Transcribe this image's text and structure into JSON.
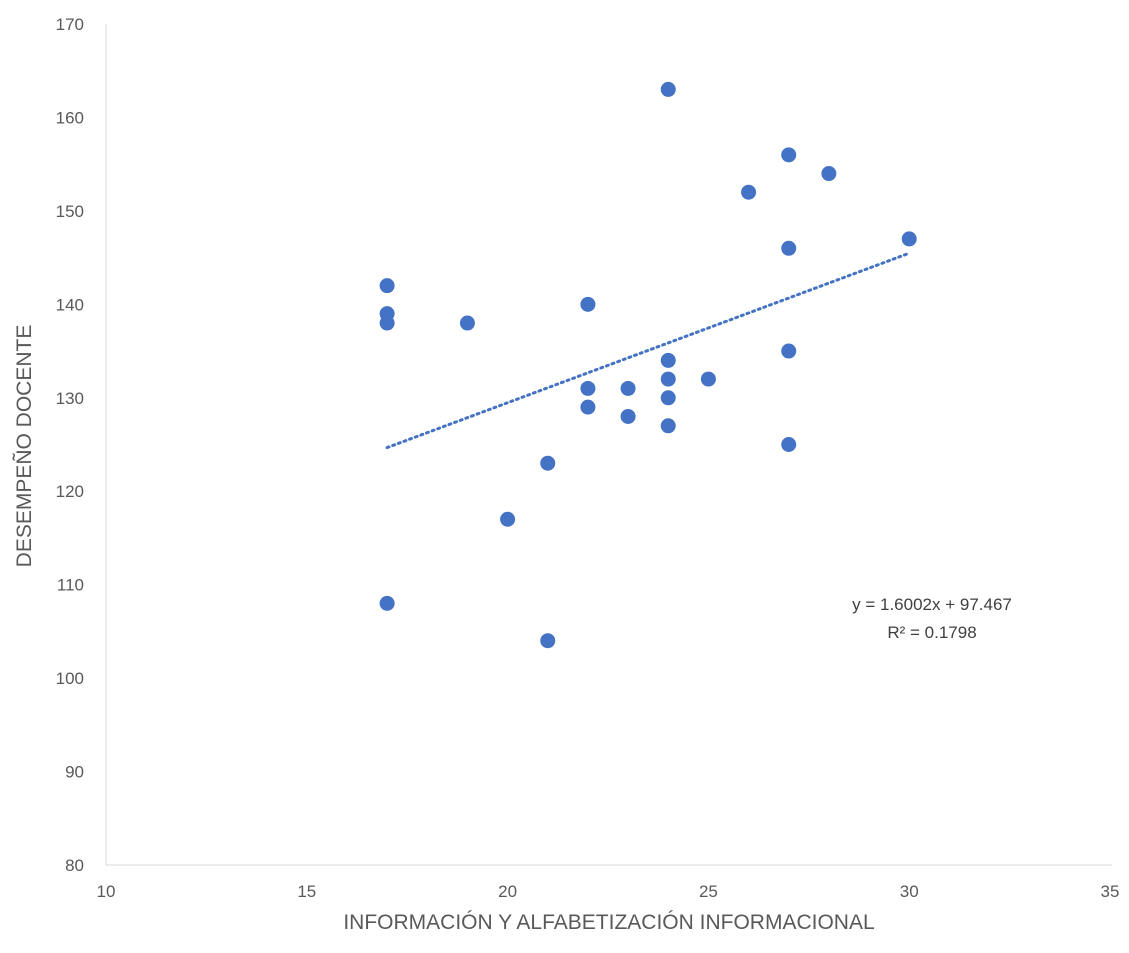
{
  "chart_data": {
    "type": "scatter",
    "title": "",
    "xlabel": "INFORMACIÓN Y ALFABETIZACIÓN INFORMACIONAL",
    "ylabel": "DESEMPEÑO DOCENTE",
    "xlim": [
      10,
      35
    ],
    "ylim": [
      80,
      170
    ],
    "xticks": [
      "10",
      "15",
      "20",
      "25",
      "30",
      "35"
    ],
    "yticks": [
      "80",
      "90",
      "100",
      "110",
      "120",
      "130",
      "140",
      "150",
      "160",
      "170"
    ],
    "grid": false,
    "legend": "none",
    "series": [
      {
        "color": "#4472C4",
        "points": [
          [
            17,
            142
          ],
          [
            17,
            139
          ],
          [
            17,
            138
          ],
          [
            17,
            108
          ],
          [
            19,
            138
          ],
          [
            20,
            117
          ],
          [
            21,
            123
          ],
          [
            21,
            104
          ],
          [
            22,
            140
          ],
          [
            22,
            131
          ],
          [
            22,
            129
          ],
          [
            23,
            131
          ],
          [
            23,
            128
          ],
          [
            24,
            163
          ],
          [
            24,
            134
          ],
          [
            24,
            132
          ],
          [
            24,
            130
          ],
          [
            24,
            127
          ],
          [
            25,
            132
          ],
          [
            26,
            152
          ],
          [
            27,
            156
          ],
          [
            27,
            146
          ],
          [
            27,
            135
          ],
          [
            27,
            125
          ],
          [
            28,
            154
          ],
          [
            30,
            147
          ]
        ]
      }
    ],
    "trendline": {
      "type": "linear",
      "style": "dotted",
      "color": "#4472C4",
      "slope": 1.6002,
      "intercept": 97.467,
      "x_range": [
        17,
        30
      ],
      "equation_label": "y = 1.6002x + 97.467",
      "r2_label": "R² = 0.1798"
    }
  }
}
